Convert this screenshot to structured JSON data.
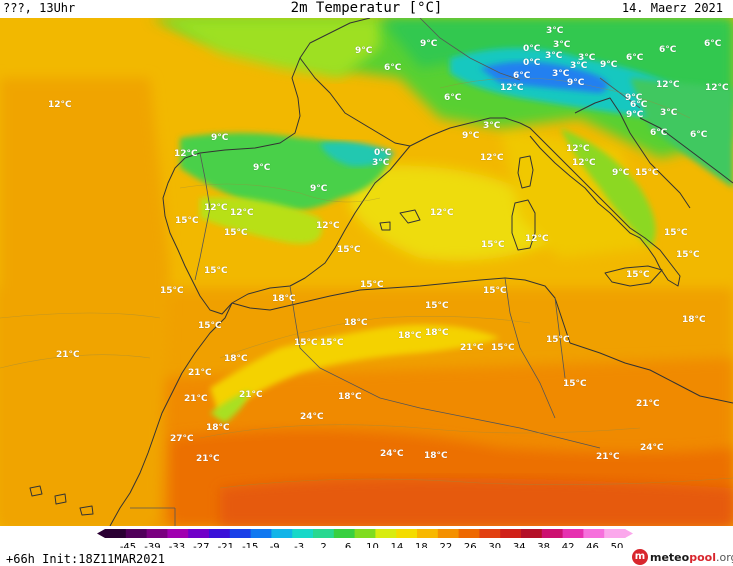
{
  "header": {
    "left": "???, 13Uhr",
    "title": "2m Temperatur [°C]",
    "date": "14. Maerz 2021"
  },
  "footer": {
    "run_info": "+66h  Init:18Z11MAR2021",
    "brand_m": "m",
    "brand_name": "meteo",
    "brand_accent": "pool",
    "brand_tld": ".org",
    "brand_colors": {
      "name": "#1a1a1a",
      "accent": "#d8262d",
      "tld": "#555555"
    }
  },
  "legend": {
    "ticks": [
      "-45",
      "-39",
      "-33",
      "-27",
      "-21",
      "-15",
      "-9",
      "-3",
      "2",
      "6",
      "10",
      "14",
      "18",
      "22",
      "26",
      "30",
      "34",
      "38",
      "42",
      "46",
      "50"
    ],
    "colors": [
      "#2a0033",
      "#50005a",
      "#7a0080",
      "#a000b0",
      "#7000c8",
      "#3a10d8",
      "#1a40e8",
      "#1078f0",
      "#12b4e8",
      "#18d8c8",
      "#28d890",
      "#38d040",
      "#80dc20",
      "#d8ec10",
      "#f4dc00",
      "#f8b800",
      "#f49000",
      "#ee6800",
      "#e24010",
      "#d02018",
      "#b41028",
      "#cc1070",
      "#e630b0",
      "#f670dc",
      "#fba8ec"
    ]
  },
  "temperature_labels": [
    {
      "text": "3°C"
    },
    {
      "text": "9°C"
    },
    {
      "text": "9°C"
    },
    {
      "text": "3°C"
    },
    {
      "text": "0°C"
    },
    {
      "text": "3°C"
    },
    {
      "text": "6°C"
    },
    {
      "text": "6°C"
    },
    {
      "text": "3°C"
    },
    {
      "text": "0°C"
    },
    {
      "text": "3°C"
    },
    {
      "text": "9°C"
    },
    {
      "text": "6°C"
    },
    {
      "text": "6°C"
    },
    {
      "text": "6°C"
    },
    {
      "text": "3°C"
    },
    {
      "text": "12°C"
    },
    {
      "text": "9°C"
    },
    {
      "text": "6°C"
    },
    {
      "text": "9°C"
    },
    {
      "text": "12°C"
    },
    {
      "text": "12°C"
    },
    {
      "text": "6°C"
    },
    {
      "text": "9°C"
    },
    {
      "text": "3°C"
    },
    {
      "text": "6°C"
    },
    {
      "text": "12°C"
    },
    {
      "text": "6°C"
    },
    {
      "text": "3°C"
    },
    {
      "text": "0°C"
    },
    {
      "text": "12°C"
    },
    {
      "text": "9°C"
    },
    {
      "text": "9°C"
    },
    {
      "text": "9°C"
    },
    {
      "text": "3°C"
    },
    {
      "text": "12°C"
    },
    {
      "text": "12°C"
    },
    {
      "text": "9°C"
    },
    {
      "text": "15°C"
    },
    {
      "text": "12°C"
    },
    {
      "text": "9°C"
    },
    {
      "text": "12°C"
    },
    {
      "text": "12°C"
    },
    {
      "text": "15°C"
    },
    {
      "text": "15°C"
    },
    {
      "text": "12°C"
    },
    {
      "text": "12°C"
    },
    {
      "text": "15°C"
    },
    {
      "text": "12°C"
    },
    {
      "text": "15°C"
    },
    {
      "text": "15°C"
    },
    {
      "text": "15°C"
    },
    {
      "text": "15°C"
    },
    {
      "text": "15°C"
    },
    {
      "text": "15°C"
    },
    {
      "text": "15°C"
    },
    {
      "text": "15°C"
    },
    {
      "text": "18°C"
    },
    {
      "text": "15°C"
    },
    {
      "text": "18°C"
    },
    {
      "text": "15°C"
    },
    {
      "text": "18°C"
    },
    {
      "text": "15°C"
    },
    {
      "text": "21°C"
    },
    {
      "text": "15°C"
    },
    {
      "text": "15°C"
    },
    {
      "text": "18°C"
    },
    {
      "text": "18°C"
    },
    {
      "text": "21°C"
    },
    {
      "text": "15°C"
    },
    {
      "text": "18°C"
    },
    {
      "text": "21°C"
    },
    {
      "text": "15°C"
    },
    {
      "text": "18°C"
    },
    {
      "text": "21°C"
    },
    {
      "text": "21°C"
    },
    {
      "text": "21°C"
    },
    {
      "text": "24°C"
    },
    {
      "text": "18°C"
    },
    {
      "text": "27°C"
    },
    {
      "text": "24°C"
    },
    {
      "text": "18°C"
    },
    {
      "text": "24°C"
    },
    {
      "text": "21°C"
    },
    {
      "text": "21°C"
    }
  ]
}
